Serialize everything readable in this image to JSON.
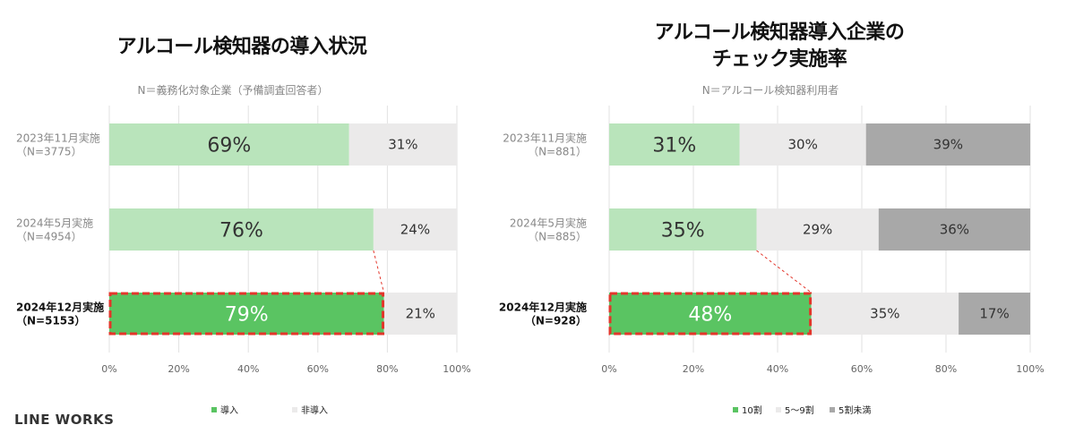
{
  "brand": "LINE WORKS",
  "colors": {
    "adopt_highlight": "#5ac462",
    "adopt": "#b9e4bb",
    "light_gray": "#ebeaea",
    "dark_gray": "#a8a8a8",
    "grid": "#e2e2e2",
    "outline": "#e3362b"
  },
  "chart_data": [
    {
      "type": "bar",
      "orientation": "horizontal",
      "stacked": true,
      "title": "アルコール検知器の導入状況",
      "subtitle": "N＝義務化対象企業（予備調査回答者）",
      "categories": [
        [
          "2023年11月実施",
          "（N=3775）"
        ],
        [
          "2024年5月実施",
          "（N=4954）"
        ],
        [
          "2024年12月実施",
          "（N=5153）"
        ]
      ],
      "series": [
        {
          "name": "導入",
          "values": [
            69,
            76,
            79
          ],
          "labels": [
            "69%",
            "76%",
            "79%"
          ]
        },
        {
          "name": "非導入",
          "values": [
            31,
            24,
            21
          ],
          "labels": [
            "31%",
            "24%",
            "21%"
          ]
        }
      ],
      "xlim": [
        0,
        100
      ],
      "xticks": [
        "0%",
        "20%",
        "40%",
        "60%",
        "80%",
        "100%"
      ],
      "highlight_row": 2,
      "legend_position": "bottom"
    },
    {
      "type": "bar",
      "orientation": "horizontal",
      "stacked": true,
      "title": [
        "アルコール検知器導入企業の",
        "チェック実施率"
      ],
      "subtitle": "N＝アルコール検知器利用者",
      "categories": [
        [
          "2023年11月実施",
          "（N=881）"
        ],
        [
          "2024年5月実施",
          "（N=885）"
        ],
        [
          "2024年12月実施",
          "（N=928）"
        ]
      ],
      "series": [
        {
          "name": "10割",
          "values": [
            31,
            35,
            48
          ],
          "labels": [
            "31%",
            "35%",
            "48%"
          ]
        },
        {
          "name": "5～9割",
          "values": [
            30,
            29,
            35
          ],
          "labels": [
            "30%",
            "29%",
            "35%"
          ]
        },
        {
          "name": "5割未満",
          "values": [
            39,
            36,
            17
          ],
          "labels": [
            "39%",
            "36%",
            "17%"
          ]
        }
      ],
      "xlim": [
        0,
        100
      ],
      "xticks": [
        "0%",
        "20%",
        "40%",
        "60%",
        "80%",
        "100%"
      ],
      "highlight_row": 2,
      "legend_position": "bottom"
    }
  ]
}
